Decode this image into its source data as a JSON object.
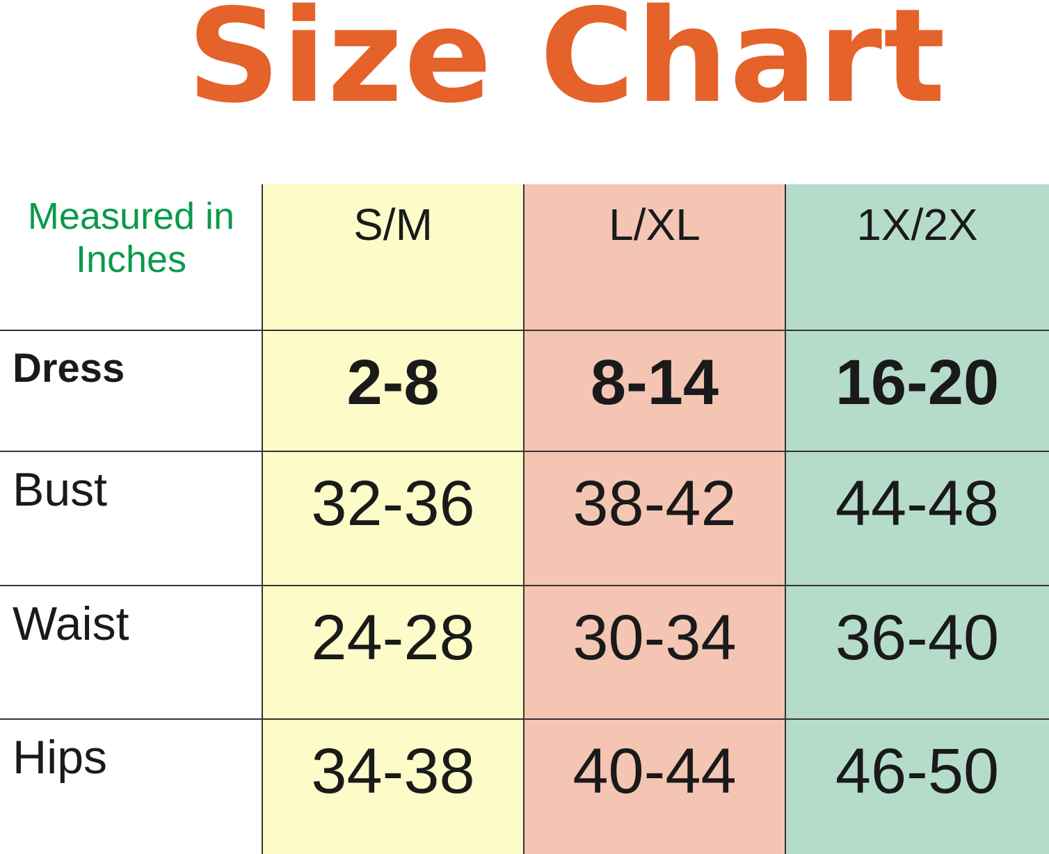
{
  "header": {
    "title": "Size Chart"
  },
  "table": {
    "columns": [
      "Measured in Inches",
      "S/M",
      "L/XL",
      "1X/2X"
    ],
    "rows": [
      [
        "Dress",
        "2-8",
        "8-14",
        "16-20"
      ],
      [
        "Bust",
        "32-36",
        "38-42",
        "44-48"
      ],
      [
        "Waist",
        "24-28",
        "30-34",
        "36-40"
      ],
      [
        "Hips",
        "34-38",
        "40-44",
        "46-50"
      ]
    ]
  }
}
